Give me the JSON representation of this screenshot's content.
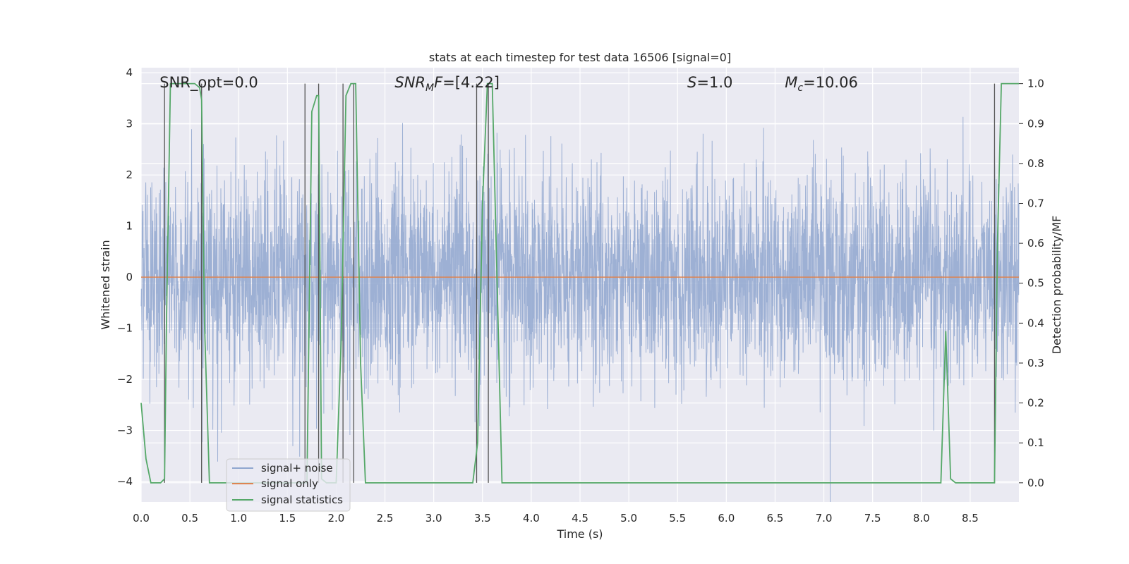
{
  "chart_data": {
    "type": "line",
    "title": "stats at each timestep for test data 16506 [signal=0]",
    "xlabel": "Time (s)",
    "ylabel": "Whitened strain",
    "y2label": "Detection probability/MF",
    "xlim": [
      0,
      9.0
    ],
    "ylim": [
      -4.4,
      4.1
    ],
    "y2lim": [
      -0.048,
      1.04
    ],
    "x_ticks": [
      "0.0",
      "0.5",
      "1.0",
      "1.5",
      "2.0",
      "2.5",
      "3.0",
      "3.5",
      "4.0",
      "4.5",
      "5.0",
      "5.5",
      "6.0",
      "6.5",
      "7.0",
      "7.5",
      "8.0",
      "8.5"
    ],
    "y_ticks": [
      "−4",
      "−3",
      "−2",
      "−1",
      "0",
      "1",
      "2",
      "3",
      "4"
    ],
    "y2_ticks": [
      "0.0",
      "0.1",
      "0.2",
      "0.3",
      "0.4",
      "0.5",
      "0.6",
      "0.7",
      "0.8",
      "0.9",
      "1.0"
    ],
    "grid": true,
    "legend_placement": "lower-left",
    "annotations": [
      {
        "base": "SNR_opt",
        "sub": "",
        "rest": "=0.0",
        "x": 0.19,
        "italic": false
      },
      {
        "base": "SNR",
        "sub": "M",
        "rest": "F=[4.22]",
        "x": 2.6,
        "italic": true
      },
      {
        "base": "S",
        "sub": "",
        "rest": "=1.0",
        "x": 5.6,
        "italic": true
      },
      {
        "base": "M",
        "sub": "c",
        "rest": "=10.06",
        "x": 6.6,
        "italic": true
      }
    ],
    "series": [
      {
        "name": "signal+ noise",
        "color": "#8fa6cf",
        "kind": "noise",
        "amplitude_std": 1.0
      },
      {
        "name": "signal only",
        "color": "#dd8452",
        "kind": "constant",
        "value": 0
      },
      {
        "name": "signal statistics",
        "color": "#55a868",
        "axis": "right",
        "x": [
          0.0,
          0.05,
          0.1,
          0.2,
          0.24,
          0.26,
          0.3,
          0.35,
          0.4,
          0.5,
          0.55,
          0.6,
          0.62,
          0.65,
          0.7,
          0.8,
          1.0,
          1.2,
          1.5,
          1.65,
          1.7,
          1.75,
          1.8,
          1.82,
          1.85,
          1.9,
          1.95,
          2.0,
          2.05,
          2.1,
          2.15,
          2.2,
          2.25,
          2.3,
          2.5,
          3.0,
          3.3,
          3.4,
          3.45,
          3.5,
          3.55,
          3.6,
          3.65,
          3.7,
          4.0,
          5.0,
          6.0,
          7.0,
          8.0,
          8.2,
          8.25,
          8.3,
          8.35,
          8.4,
          8.7,
          8.75,
          8.78,
          8.82,
          8.85,
          8.9,
          9.0
        ],
        "y": [
          0.2,
          0.06,
          0.0,
          0.0,
          0.01,
          0.4,
          1.0,
          1.0,
          1.0,
          1.0,
          1.0,
          0.99,
          0.96,
          0.4,
          0.0,
          0.0,
          0.0,
          0.0,
          0.0,
          0.0,
          0.0,
          0.93,
          0.97,
          0.97,
          0.01,
          0.0,
          0.0,
          0.0,
          0.35,
          0.97,
          1.0,
          1.0,
          0.3,
          0.0,
          0.0,
          0.0,
          0.0,
          0.0,
          0.1,
          0.7,
          1.0,
          1.0,
          0.5,
          0.0,
          0.0,
          0.0,
          0.0,
          0.0,
          0.0,
          0.0,
          0.38,
          0.01,
          0.0,
          0.0,
          0.0,
          0.0,
          0.6,
          1.0,
          1.0,
          1.0,
          1.0
        ]
      }
    ],
    "vertical_markers": [
      0.24,
      0.62,
      1.68,
      1.82,
      2.07,
      2.18,
      3.44,
      3.56,
      8.75
    ]
  }
}
